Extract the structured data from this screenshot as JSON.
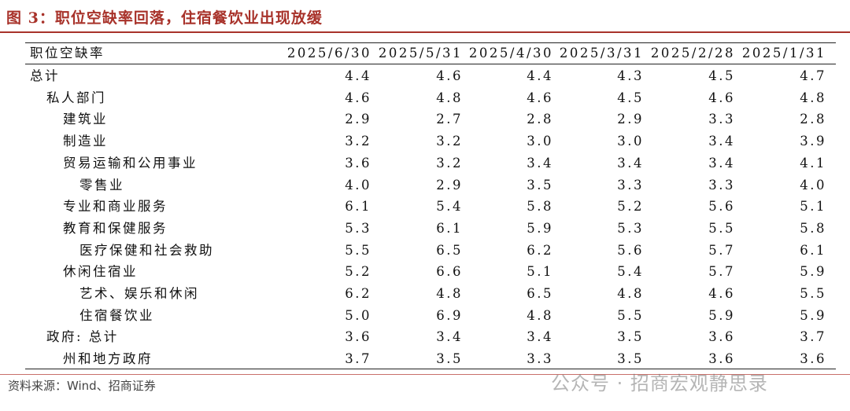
{
  "title": "图 3：职位空缺率回落，住宿餐饮业出现放缓",
  "table": {
    "header": [
      "职位空缺率",
      "2025/6/30",
      "2025/5/31",
      "2025/4/30",
      "2025/3/31",
      "2025/2/28",
      "2025/1/31"
    ],
    "rows": [
      [
        "总计",
        "4.4",
        "4.6",
        "4.4",
        "4.3",
        "4.5",
        "4.7"
      ],
      [
        "私人部门",
        "4.6",
        "4.8",
        "4.6",
        "4.5",
        "4.6",
        "4.8"
      ],
      [
        "建筑业",
        "2.9",
        "2.7",
        "2.8",
        "2.9",
        "3.3",
        "2.8"
      ],
      [
        "制造业",
        "3.2",
        "3.2",
        "3.0",
        "3.0",
        "3.4",
        "3.9"
      ],
      [
        "贸易运输和公用事业",
        "3.6",
        "3.2",
        "3.4",
        "3.4",
        "3.4",
        "4.1"
      ],
      [
        "零售业",
        "4.0",
        "2.9",
        "3.5",
        "3.3",
        "3.3",
        "4.0"
      ],
      [
        "专业和商业服务",
        "6.1",
        "5.4",
        "5.8",
        "5.2",
        "5.6",
        "5.1"
      ],
      [
        "教育和保健服务",
        "5.3",
        "6.1",
        "5.9",
        "5.3",
        "5.5",
        "5.8"
      ],
      [
        "医疗保健和社会救助",
        "5.5",
        "6.5",
        "6.2",
        "5.6",
        "5.7",
        "6.1"
      ],
      [
        "休闲住宿业",
        "5.2",
        "6.6",
        "5.1",
        "5.4",
        "5.7",
        "5.9"
      ],
      [
        "艺术、娱乐和休闲",
        "6.2",
        "4.8",
        "6.5",
        "4.8",
        "4.6",
        "5.5"
      ],
      [
        "住宿餐饮业",
        "5.0",
        "6.9",
        "4.8",
        "5.5",
        "5.9",
        "5.9"
      ],
      [
        "政府: 总计",
        "3.6",
        "3.4",
        "3.4",
        "3.5",
        "3.6",
        "3.7"
      ],
      [
        "州和地方政府",
        "3.7",
        "3.5",
        "3.3",
        "3.5",
        "3.6",
        "3.6"
      ]
    ]
  },
  "source": "资料来源：Wind、招商证券",
  "watermark": "公众号 · 招商宏观静思录"
}
